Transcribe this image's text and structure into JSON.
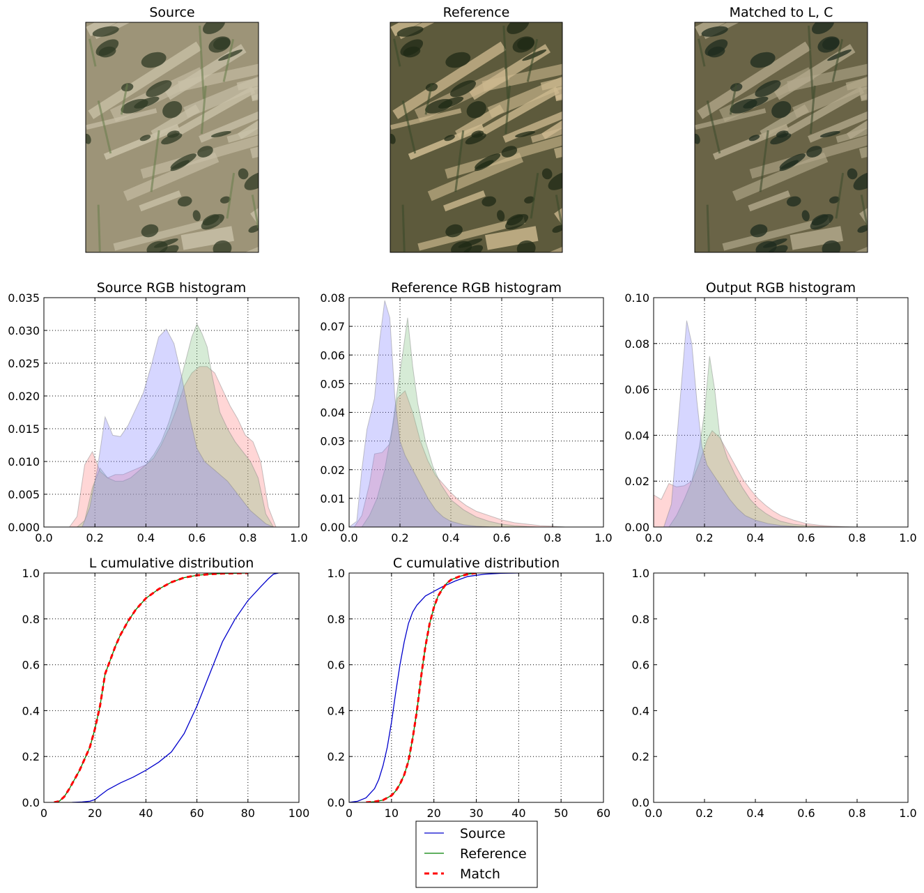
{
  "chart_data": [
    {
      "id": "source-image",
      "type": "image",
      "title": "Source",
      "tones": {
        "light": "#c9c1a8",
        "mid": "#9d9478",
        "dark": "#2f3a24",
        "veg": "#6a7e4e"
      }
    },
    {
      "id": "reference-image",
      "type": "image",
      "title": "Reference",
      "tones": {
        "light": "#cdb98f",
        "mid": "#5d5a3c",
        "dark": "#1f2a16",
        "veg": "#3a4a2a"
      }
    },
    {
      "id": "matched-image",
      "type": "image",
      "title": "Matched to L, C",
      "tones": {
        "light": "#b3a98c",
        "mid": "#6a6447",
        "dark": "#1e2b1d",
        "veg": "#3f4d2f"
      }
    },
    {
      "id": "source-hist",
      "type": "area",
      "title": "Source RGB histogram",
      "xlim": [
        0.0,
        1.0
      ],
      "ylim": [
        0.0,
        0.035
      ],
      "xticks": [
        "0.0",
        "0.2",
        "0.4",
        "0.6",
        "0.8",
        "1.0"
      ],
      "yticks": [
        "0.000",
        "0.005",
        "0.010",
        "0.015",
        "0.020",
        "0.025",
        "0.030",
        "0.035"
      ],
      "grid": true,
      "series": [
        {
          "color": "#ff8080",
          "x": [
            0.1,
            0.13,
            0.16,
            0.19,
            0.22,
            0.25,
            0.28,
            0.31,
            0.34,
            0.37,
            0.4,
            0.43,
            0.46,
            0.49,
            0.52,
            0.55,
            0.58,
            0.61,
            0.64,
            0.67,
            0.7,
            0.73,
            0.76,
            0.79,
            0.82,
            0.85,
            0.88,
            0.91
          ],
          "y": [
            0.0,
            0.0016,
            0.0095,
            0.0115,
            0.0085,
            0.0075,
            0.008,
            0.008,
            0.0085,
            0.009,
            0.0095,
            0.0105,
            0.0125,
            0.015,
            0.018,
            0.0215,
            0.0235,
            0.0245,
            0.0245,
            0.0235,
            0.021,
            0.0185,
            0.0165,
            0.014,
            0.013,
            0.01,
            0.003,
            0.0
          ]
        },
        {
          "color": "#80c080",
          "x": [
            0.13,
            0.16,
            0.19,
            0.22,
            0.25,
            0.28,
            0.31,
            0.34,
            0.37,
            0.4,
            0.43,
            0.46,
            0.49,
            0.52,
            0.55,
            0.58,
            0.6,
            0.62,
            0.64,
            0.66,
            0.69,
            0.72,
            0.75,
            0.78,
            0.81,
            0.84,
            0.87,
            0.9
          ],
          "y": [
            0.0,
            0.001,
            0.006,
            0.009,
            0.0075,
            0.007,
            0.007,
            0.0075,
            0.0085,
            0.0095,
            0.011,
            0.013,
            0.016,
            0.02,
            0.0245,
            0.029,
            0.031,
            0.0295,
            0.0275,
            0.023,
            0.0175,
            0.015,
            0.013,
            0.0115,
            0.01,
            0.0075,
            0.002,
            0.0
          ]
        },
        {
          "color": "#8080ff",
          "x": [
            0.15,
            0.18,
            0.21,
            0.24,
            0.27,
            0.3,
            0.33,
            0.36,
            0.39,
            0.42,
            0.45,
            0.48,
            0.51,
            0.54,
            0.57,
            0.6,
            0.63,
            0.66,
            0.69,
            0.72,
            0.75,
            0.78,
            0.81,
            0.84,
            0.87,
            0.9
          ],
          "y": [
            0.0,
            0.003,
            0.009,
            0.0168,
            0.014,
            0.0138,
            0.0155,
            0.018,
            0.0205,
            0.0245,
            0.029,
            0.0302,
            0.028,
            0.023,
            0.017,
            0.012,
            0.01,
            0.009,
            0.008,
            0.007,
            0.0055,
            0.004,
            0.0025,
            0.0015,
            0.0005,
            0.0
          ]
        }
      ]
    },
    {
      "id": "reference-hist",
      "type": "area",
      "title": "Reference RGB histogram",
      "xlim": [
        0.0,
        1.0
      ],
      "ylim": [
        0.0,
        0.08
      ],
      "xticks": [
        "0.0",
        "0.2",
        "0.4",
        "0.6",
        "0.8",
        "1.0"
      ],
      "yticks": [
        "0.00",
        "0.01",
        "0.02",
        "0.03",
        "0.04",
        "0.05",
        "0.06",
        "0.07",
        "0.08"
      ],
      "grid": true,
      "series": [
        {
          "color": "#ff8080",
          "x": [
            0.02,
            0.05,
            0.08,
            0.1,
            0.13,
            0.16,
            0.19,
            0.22,
            0.25,
            0.28,
            0.31,
            0.34,
            0.37,
            0.4,
            0.43,
            0.46,
            0.5,
            0.55,
            0.6,
            0.65,
            0.7,
            0.75,
            0.8,
            0.85
          ],
          "y": [
            0.0,
            0.004,
            0.015,
            0.0255,
            0.026,
            0.029,
            0.045,
            0.0475,
            0.04,
            0.03,
            0.023,
            0.018,
            0.015,
            0.012,
            0.0095,
            0.0075,
            0.0055,
            0.004,
            0.0025,
            0.0015,
            0.001,
            0.0005,
            0.0003,
            0.0
          ]
        },
        {
          "color": "#80c080",
          "x": [
            0.05,
            0.08,
            0.11,
            0.14,
            0.17,
            0.19,
            0.21,
            0.23,
            0.25,
            0.27,
            0.3,
            0.33,
            0.36,
            0.4,
            0.45,
            0.5,
            0.55,
            0.6,
            0.65,
            0.7,
            0.75
          ],
          "y": [
            0.0,
            0.004,
            0.01,
            0.02,
            0.035,
            0.048,
            0.06,
            0.073,
            0.056,
            0.043,
            0.03,
            0.021,
            0.015,
            0.0095,
            0.006,
            0.0035,
            0.002,
            0.001,
            0.0005,
            0.0002,
            0.0
          ]
        },
        {
          "color": "#8080ff",
          "x": [
            0.0,
            0.03,
            0.05,
            0.07,
            0.1,
            0.12,
            0.14,
            0.16,
            0.18,
            0.2,
            0.22,
            0.25,
            0.28,
            0.31,
            0.34,
            0.37,
            0.4,
            0.45,
            0.5,
            0.55,
            0.6
          ],
          "y": [
            0.0,
            0.002,
            0.02,
            0.034,
            0.045,
            0.065,
            0.079,
            0.073,
            0.045,
            0.03,
            0.025,
            0.02,
            0.015,
            0.01,
            0.006,
            0.0035,
            0.002,
            0.0008,
            0.0003,
            0.0001,
            0.0
          ]
        }
      ]
    },
    {
      "id": "output-hist",
      "type": "area",
      "title": "Output RGB histogram",
      "xlim": [
        0.0,
        1.0
      ],
      "ylim": [
        0.0,
        0.1
      ],
      "xticks": [
        "0.0",
        "0.2",
        "0.4",
        "0.6",
        "0.8",
        "1.0"
      ],
      "yticks": [
        "0.00",
        "0.02",
        "0.04",
        "0.06",
        "0.08",
        "0.10"
      ],
      "grid": true,
      "series": [
        {
          "color": "#ff8080",
          "x": [
            0.0,
            0.03,
            0.06,
            0.09,
            0.12,
            0.15,
            0.18,
            0.21,
            0.23,
            0.26,
            0.29,
            0.32,
            0.35,
            0.38,
            0.41,
            0.44,
            0.47,
            0.5,
            0.55,
            0.6,
            0.65,
            0.7,
            0.75,
            0.8
          ],
          "y": [
            0.014,
            0.012,
            0.019,
            0.0175,
            0.018,
            0.02,
            0.028,
            0.038,
            0.042,
            0.039,
            0.033,
            0.027,
            0.021,
            0.0165,
            0.0125,
            0.0095,
            0.007,
            0.005,
            0.003,
            0.0015,
            0.0008,
            0.0004,
            0.0002,
            0.0
          ]
        },
        {
          "color": "#80c080",
          "x": [
            0.06,
            0.09,
            0.12,
            0.15,
            0.18,
            0.2,
            0.22,
            0.24,
            0.26,
            0.29,
            0.32,
            0.35,
            0.38,
            0.41,
            0.44,
            0.47,
            0.5,
            0.55,
            0.6,
            0.65,
            0.7,
            0.75
          ],
          "y": [
            0.0,
            0.005,
            0.012,
            0.02,
            0.035,
            0.05,
            0.0745,
            0.06,
            0.04,
            0.03,
            0.023,
            0.017,
            0.012,
            0.0085,
            0.006,
            0.004,
            0.0025,
            0.0012,
            0.0006,
            0.0003,
            0.0001,
            0.0
          ]
        },
        {
          "color": "#8080ff",
          "x": [
            0.04,
            0.07,
            0.1,
            0.13,
            0.15,
            0.17,
            0.19,
            0.21,
            0.24,
            0.27,
            0.3,
            0.33,
            0.36,
            0.4,
            0.45,
            0.5,
            0.55,
            0.6
          ],
          "y": [
            0.0,
            0.01,
            0.05,
            0.09,
            0.08,
            0.055,
            0.035,
            0.027,
            0.022,
            0.017,
            0.012,
            0.008,
            0.005,
            0.003,
            0.0015,
            0.0007,
            0.0003,
            0.0
          ]
        }
      ]
    },
    {
      "id": "l-cdf",
      "type": "line",
      "title": "L cumulative distribution",
      "xlim": [
        0,
        100
      ],
      "ylim": [
        0.0,
        1.0
      ],
      "xticks": [
        "0",
        "20",
        "40",
        "60",
        "80",
        "100"
      ],
      "yticks": [
        "0.0",
        "0.2",
        "0.4",
        "0.6",
        "0.8",
        "1.0"
      ],
      "grid": true,
      "series": [
        {
          "color": "#0000cc",
          "dash": false,
          "x": [
            11,
            15,
            18,
            20,
            22,
            25,
            30,
            35,
            40,
            45,
            50,
            55,
            60,
            65,
            70,
            75,
            80,
            85,
            88,
            90,
            92
          ],
          "y": [
            0.0,
            0.002,
            0.005,
            0.012,
            0.03,
            0.055,
            0.085,
            0.11,
            0.14,
            0.175,
            0.22,
            0.3,
            0.42,
            0.56,
            0.7,
            0.8,
            0.88,
            0.94,
            0.975,
            0.995,
            1.0
          ]
        },
        {
          "color": "#008000",
          "dash": false,
          "x": [
            4,
            6,
            8,
            10,
            12,
            14,
            16,
            18,
            20,
            22,
            24,
            26,
            28,
            30,
            33,
            36,
            40,
            45,
            50,
            55,
            60,
            65,
            70,
            75,
            80
          ],
          "y": [
            0.0,
            0.005,
            0.025,
            0.06,
            0.1,
            0.14,
            0.19,
            0.24,
            0.32,
            0.42,
            0.56,
            0.62,
            0.68,
            0.73,
            0.79,
            0.84,
            0.89,
            0.93,
            0.96,
            0.98,
            0.99,
            0.995,
            0.998,
            0.999,
            1.0
          ]
        },
        {
          "color": "#ff0000",
          "dash": true,
          "x": [
            4,
            6,
            8,
            10,
            12,
            14,
            16,
            18,
            20,
            22,
            24,
            26,
            28,
            30,
            33,
            36,
            40,
            45,
            50,
            55,
            60,
            65,
            70,
            75,
            80
          ],
          "y": [
            0.0,
            0.005,
            0.025,
            0.06,
            0.1,
            0.14,
            0.19,
            0.24,
            0.32,
            0.42,
            0.56,
            0.62,
            0.68,
            0.73,
            0.79,
            0.84,
            0.89,
            0.93,
            0.96,
            0.98,
            0.99,
            0.995,
            0.998,
            0.999,
            1.0
          ]
        }
      ]
    },
    {
      "id": "c-cdf",
      "type": "line",
      "title": "C cumulative distribution",
      "xlim": [
        0,
        60
      ],
      "ylim": [
        0.0,
        1.0
      ],
      "xticks": [
        "0",
        "10",
        "20",
        "30",
        "40",
        "50",
        "60"
      ],
      "yticks": [
        "0.0",
        "0.2",
        "0.4",
        "0.6",
        "0.8",
        "1.0"
      ],
      "grid": true,
      "series": [
        {
          "color": "#0000cc",
          "dash": false,
          "x": [
            0,
            2,
            4,
            5,
            6,
            7,
            8,
            9,
            10,
            11,
            12,
            13,
            14,
            15,
            16,
            18,
            20,
            22,
            25,
            28,
            32,
            36,
            40
          ],
          "y": [
            0.0,
            0.005,
            0.02,
            0.04,
            0.06,
            0.1,
            0.16,
            0.24,
            0.35,
            0.48,
            0.6,
            0.7,
            0.78,
            0.83,
            0.86,
            0.9,
            0.92,
            0.94,
            0.965,
            0.985,
            0.995,
            0.999,
            1.0
          ]
        },
        {
          "color": "#008000",
          "dash": false,
          "x": [
            4,
            6,
            8,
            9,
            10,
            11,
            12,
            13,
            14,
            15,
            16,
            17,
            18,
            19,
            20,
            21,
            22,
            23,
            24,
            26,
            28,
            30
          ],
          "y": [
            0.0,
            0.003,
            0.01,
            0.02,
            0.03,
            0.05,
            0.08,
            0.12,
            0.18,
            0.28,
            0.4,
            0.55,
            0.68,
            0.78,
            0.85,
            0.9,
            0.93,
            0.955,
            0.97,
            0.985,
            0.995,
            1.0
          ]
        },
        {
          "color": "#ff0000",
          "dash": true,
          "x": [
            4,
            6,
            8,
            9,
            10,
            11,
            12,
            13,
            14,
            15,
            16,
            17,
            18,
            19,
            20,
            21,
            22,
            23,
            24,
            26,
            28,
            30
          ],
          "y": [
            0.0,
            0.003,
            0.01,
            0.02,
            0.03,
            0.05,
            0.08,
            0.12,
            0.18,
            0.28,
            0.4,
            0.55,
            0.68,
            0.78,
            0.85,
            0.9,
            0.93,
            0.955,
            0.97,
            0.985,
            0.995,
            1.0
          ]
        }
      ]
    },
    {
      "id": "empty-axes",
      "type": "line",
      "title": "",
      "xlim": [
        0.0,
        1.0
      ],
      "ylim": [
        0.0,
        1.0
      ],
      "xticks": [
        "0.0",
        "0.2",
        "0.4",
        "0.6",
        "0.8",
        "1.0"
      ],
      "yticks": [
        "0.0",
        "0.2",
        "0.4",
        "0.6",
        "0.8",
        "1.0"
      ],
      "grid": false,
      "series": []
    }
  ],
  "legend": {
    "placement": "bottom-center",
    "entries": [
      {
        "label": "Source",
        "color": "#0000cc",
        "dash": false
      },
      {
        "label": "Reference",
        "color": "#008000",
        "dash": false
      },
      {
        "label": "Match",
        "color": "#ff0000",
        "dash": true
      }
    ]
  }
}
